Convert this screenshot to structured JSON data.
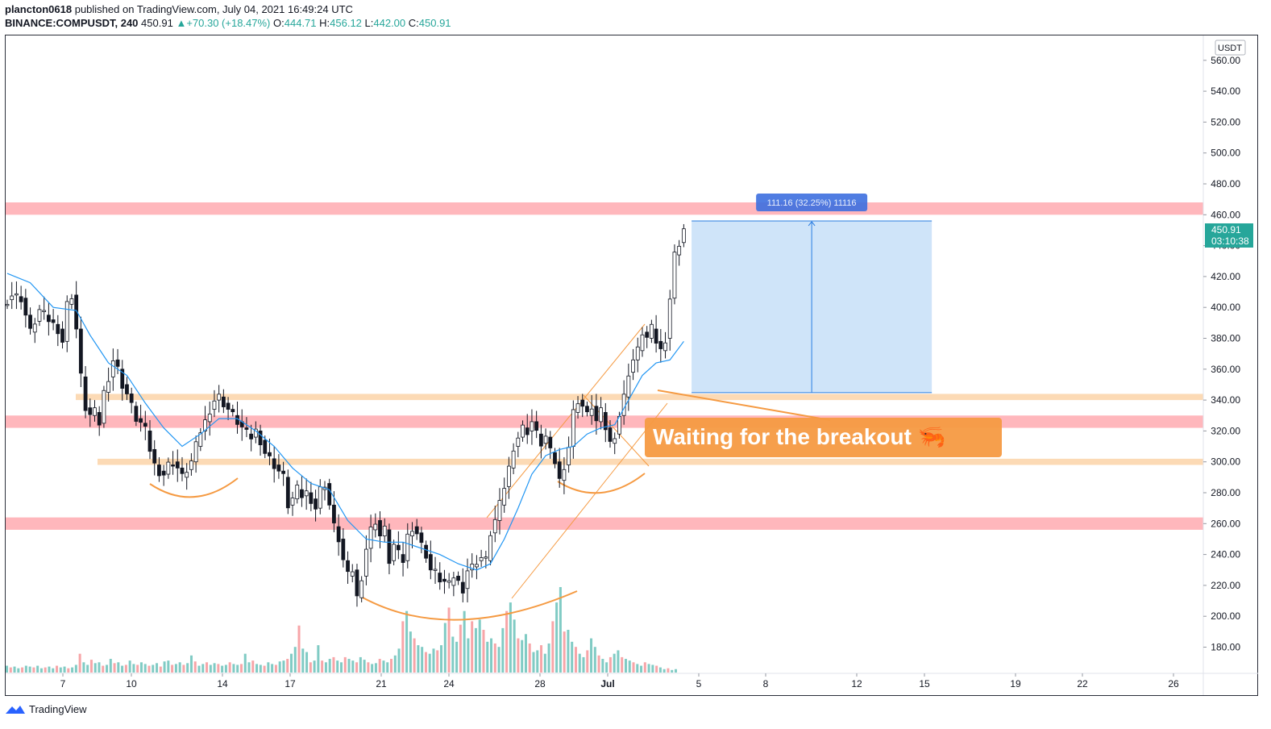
{
  "header": {
    "publisher": "plancton0618",
    "published_text": "published on TradingView.com, July 04, 2021 16:49:24 UTC",
    "symbol": "BINANCE:COMPUSDT, 240",
    "last": "450.91",
    "change": "+70.30 (+18.47%)",
    "open_label": "O:",
    "open": "444.71",
    "high_label": "H:",
    "high": "456.12",
    "low_label": "L:",
    "low": "442.00",
    "close_label": "C:",
    "close": "450.91"
  },
  "footer": {
    "brand": "TradingView"
  },
  "colors": {
    "up": "#26a69a",
    "down": "#ef5350",
    "candle_up_fill": "#ffffff",
    "candle_body": "#131722",
    "ma": "#2196f3",
    "resistance_zone": "#ffb3b8",
    "support_zone": "#fbd3a8",
    "annotation": "#f59a42",
    "measure_fill": "#cfe4f9",
    "measure_line": "#2a7de1",
    "volume_up": "#80cbc4",
    "volume_down": "#f7a5a8"
  },
  "chart_data": {
    "type": "candlestick",
    "symbol": "BINANCE:COMPUSDT",
    "timeframe": "240",
    "currency_label": "USDT",
    "ylim": [
      165,
      568
    ],
    "y_ticks": [
      180,
      200,
      220,
      240,
      260,
      280,
      300,
      320,
      340,
      360,
      380,
      400,
      420,
      440,
      460,
      480,
      500,
      520,
      540,
      560
    ],
    "x_ticks": [
      "7",
      "10",
      "14",
      "17",
      "21",
      "24",
      "28",
      "Jul",
      "5",
      "8",
      "12",
      "15",
      "19",
      "22",
      "26"
    ],
    "last_price": "450.91",
    "countdown": "03:10:38",
    "series": [
      {
        "name": "price",
        "close_path": [
          [
            0,
            402
          ],
          [
            2,
            408
          ],
          [
            4,
            406
          ],
          [
            6,
            384
          ],
          [
            8,
            398
          ],
          [
            10,
            392
          ],
          [
            12,
            386
          ],
          [
            13,
            378
          ],
          [
            14,
            402
          ],
          [
            15,
            408
          ],
          [
            16,
            386
          ],
          [
            17,
            355
          ],
          [
            18,
            335
          ],
          [
            19,
            330
          ],
          [
            20,
            332
          ],
          [
            21,
            325
          ],
          [
            22,
            345
          ],
          [
            23,
            355
          ],
          [
            24,
            366
          ],
          [
            25,
            360
          ],
          [
            26,
            350
          ],
          [
            27,
            344
          ],
          [
            28,
            336
          ],
          [
            29,
            328
          ],
          [
            30,
            325
          ],
          [
            31,
            320
          ],
          [
            32,
            308
          ],
          [
            33,
            298
          ],
          [
            34,
            294
          ],
          [
            35,
            292
          ],
          [
            36,
            298
          ],
          [
            37,
            300
          ],
          [
            38,
            296
          ],
          [
            39,
            290
          ],
          [
            40,
            295
          ],
          [
            41,
            300
          ],
          [
            42,
            310
          ],
          [
            43,
            320
          ],
          [
            44,
            326
          ],
          [
            45,
            334
          ],
          [
            46,
            340
          ],
          [
            47,
            342
          ],
          [
            48,
            338
          ],
          [
            49,
            334
          ],
          [
            50,
            330
          ],
          [
            51,
            326
          ],
          [
            52,
            322
          ],
          [
            53,
            318
          ],
          [
            54,
            316
          ],
          [
            55,
            320
          ],
          [
            56,
            314
          ],
          [
            57,
            306
          ],
          [
            58,
            302
          ],
          [
            59,
            298
          ],
          [
            60,
            294
          ],
          [
            61,
            290
          ],
          [
            62,
            272
          ],
          [
            63,
            276
          ],
          [
            64,
            282
          ],
          [
            65,
            278
          ],
          [
            66,
            280
          ],
          [
            67,
            276
          ],
          [
            68,
            270
          ],
          [
            69,
            282
          ],
          [
            70,
            286
          ],
          [
            71,
            272
          ],
          [
            72,
            258
          ],
          [
            73,
            250
          ],
          [
            74,
            236
          ],
          [
            75,
            226
          ],
          [
            76,
            230
          ],
          [
            77,
            212
          ],
          [
            78,
            226
          ],
          [
            79,
            244
          ],
          [
            80,
            256
          ],
          [
            81,
            262
          ],
          [
            82,
            252
          ],
          [
            83,
            256
          ],
          [
            84,
            236
          ],
          [
            85,
            246
          ],
          [
            86,
            240
          ],
          [
            87,
            236
          ],
          [
            88,
            252
          ],
          [
            89,
            258
          ],
          [
            90,
            254
          ],
          [
            91,
            246
          ],
          [
            92,
            240
          ],
          [
            93,
            230
          ],
          [
            94,
            228
          ],
          [
            95,
            224
          ],
          [
            96,
            222
          ],
          [
            97,
            220
          ],
          [
            98,
            226
          ],
          [
            99,
            222
          ],
          [
            100,
            218
          ],
          [
            101,
            230
          ],
          [
            102,
            232
          ],
          [
            103,
            236
          ],
          [
            104,
            238
          ],
          [
            105,
            236
          ],
          [
            106,
            254
          ],
          [
            107,
            262
          ],
          [
            108,
            272
          ],
          [
            109,
            284
          ],
          [
            110,
            296
          ],
          [
            111,
            310
          ],
          [
            112,
            316
          ],
          [
            113,
            322
          ],
          [
            114,
            320
          ],
          [
            115,
            326
          ],
          [
            116,
            318
          ],
          [
            117,
            312
          ],
          [
            118,
            316
          ],
          [
            119,
            306
          ],
          [
            120,
            300
          ],
          [
            121,
            288
          ],
          [
            122,
            298
          ],
          [
            123,
            310
          ],
          [
            124,
            332
          ],
          [
            125,
            340
          ],
          [
            126,
            336
          ],
          [
            127,
            330
          ],
          [
            128,
            336
          ],
          [
            129,
            326
          ],
          [
            130,
            332
          ],
          [
            131,
            322
          ],
          [
            132,
            312
          ],
          [
            133,
            318
          ],
          [
            134,
            330
          ],
          [
            135,
            342
          ],
          [
            136,
            358
          ],
          [
            137,
            366
          ],
          [
            138,
            372
          ],
          [
            139,
            384
          ],
          [
            140,
            380
          ],
          [
            141,
            386
          ],
          [
            142,
            378
          ],
          [
            143,
            372
          ],
          [
            144,
            380
          ],
          [
            145,
            406
          ],
          [
            146,
            434
          ],
          [
            147,
            442
          ],
          [
            148,
            450.91
          ]
        ]
      },
      {
        "name": "ma",
        "path": [
          [
            0,
            422
          ],
          [
            5,
            416
          ],
          [
            10,
            400
          ],
          [
            15,
            398
          ],
          [
            18,
            382
          ],
          [
            22,
            364
          ],
          [
            26,
            356
          ],
          [
            30,
            338
          ],
          [
            34,
            322
          ],
          [
            38,
            310
          ],
          [
            42,
            318
          ],
          [
            46,
            328
          ],
          [
            50,
            328
          ],
          [
            54,
            320
          ],
          [
            58,
            310
          ],
          [
            62,
            296
          ],
          [
            66,
            286
          ],
          [
            70,
            282
          ],
          [
            74,
            262
          ],
          [
            78,
            250
          ],
          [
            82,
            248
          ],
          [
            86,
            248
          ],
          [
            90,
            244
          ],
          [
            94,
            240
          ],
          [
            98,
            234
          ],
          [
            102,
            230
          ],
          [
            105,
            234
          ],
          [
            108,
            250
          ],
          [
            111,
            270
          ],
          [
            114,
            292
          ],
          [
            117,
            304
          ],
          [
            120,
            308
          ],
          [
            123,
            310
          ],
          [
            126,
            318
          ],
          [
            129,
            322
          ],
          [
            132,
            324
          ],
          [
            135,
            340
          ],
          [
            138,
            356
          ],
          [
            141,
            364
          ],
          [
            144,
            366
          ],
          [
            147,
            378
          ]
        ]
      }
    ],
    "volume_scale_max": 100,
    "volume": [
      8,
      6,
      7,
      5,
      6,
      8,
      7,
      6,
      8,
      5,
      6,
      7,
      5,
      8,
      6,
      7,
      5,
      6,
      9,
      22,
      12,
      9,
      15,
      11,
      12,
      8,
      9,
      16,
      11,
      12,
      8,
      9,
      14,
      10,
      9,
      12,
      10,
      8,
      9,
      11,
      7,
      13,
      14,
      9,
      10,
      12,
      9,
      11,
      20,
      13,
      8,
      10,
      12,
      9,
      11,
      10,
      8,
      9,
      12,
      10,
      9,
      10,
      22,
      12,
      14,
      10,
      9,
      8,
      12,
      10,
      9,
      13,
      14,
      16,
      22,
      30,
      55,
      28,
      24,
      12,
      14,
      32,
      14,
      12,
      16,
      18,
      14,
      12,
      18,
      16,
      14,
      12,
      18,
      15,
      12,
      10,
      11,
      16,
      14,
      12,
      16,
      20,
      28,
      60,
      72,
      48,
      40,
      32,
      30,
      24,
      22,
      28,
      26,
      32,
      58,
      76,
      42,
      36,
      56,
      72,
      40,
      60,
      52,
      62,
      50,
      36,
      40,
      34,
      30,
      52,
      72,
      82,
      62,
      40,
      38,
      45,
      34,
      24,
      26,
      32,
      22,
      34,
      60,
      82,
      100,
      48,
      50,
      36,
      30,
      22,
      18,
      26,
      40,
      30,
      20,
      16,
      12,
      18,
      22,
      26,
      18,
      16,
      14,
      12,
      10,
      8,
      12,
      10,
      9,
      8,
      6,
      4,
      5,
      3,
      4
    ],
    "zones": [
      {
        "type": "resistance",
        "from": 460,
        "to": 468
      },
      {
        "type": "support",
        "from": 340,
        "to": 344
      },
      {
        "type": "resistance",
        "from": 322,
        "to": 330
      },
      {
        "type": "support",
        "from": 298,
        "to": 302
      },
      {
        "type": "resistance",
        "from": 256,
        "to": 264
      }
    ],
    "measure": {
      "label": "111.16 (32.25%) 11116",
      "from_price": 344.8,
      "to_price": 456.0,
      "start_x_index": 148,
      "end_x_index": 196
    },
    "annotation": "Waiting for the breakout 🦐"
  }
}
